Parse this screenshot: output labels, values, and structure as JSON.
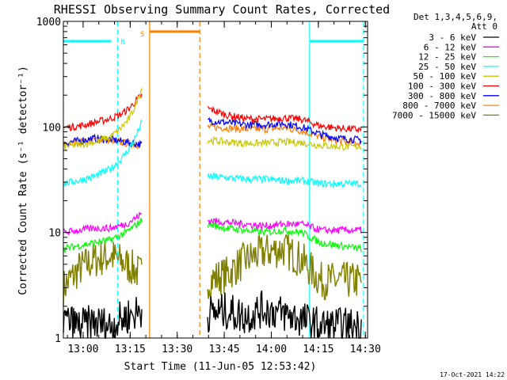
{
  "chart_data": {
    "type": "line",
    "title": "RHESSI Observing Summary Count Rates, Corrected",
    "xlabel": "Start Time (11-Jun-05 12:53:42)",
    "ylabel": "Corrected Count Rate (s⁻¹ detector⁻¹)",
    "yscale": "log",
    "ylim": [
      1,
      1000
    ],
    "xlim_minutes_after_start": [
      0,
      97
    ],
    "x_ticks": [
      {
        "label": "13:00",
        "minute": 6.3
      },
      {
        "label": "13:15",
        "minute": 21.3
      },
      {
        "label": "13:30",
        "minute": 36.3
      },
      {
        "label": "13:45",
        "minute": 51.3
      },
      {
        "label": "14:00",
        "minute": 66.3
      },
      {
        "label": "14:15",
        "minute": 81.3
      },
      {
        "label": "14:30",
        "minute": 96.3
      }
    ],
    "y_ticks": [
      {
        "label": "1",
        "value": 1
      },
      {
        "label": "10",
        "value": 10
      },
      {
        "label": "100",
        "value": 100
      },
      {
        "label": "1000",
        "value": 1000
      }
    ],
    "legend_header": [
      "Det 1,3,4,5,6,9,",
      "Att 0"
    ],
    "legend_position": "right",
    "series": [
      {
        "name": "3 - 6 keV",
        "color": "#000000",
        "segments": [
          {
            "x": [
              0,
              5,
              10,
              15,
              20,
              25
            ],
            "y": [
              1.5,
              1.3,
              1.4,
              1.3,
              1.6,
              1.8
            ]
          },
          {
            "x": [
              46,
              52,
              58,
              64,
              70,
              76,
              82,
              88,
              95
            ],
            "y": [
              1.7,
              1.8,
              1.6,
              1.9,
              1.7,
              1.5,
              1.3,
              1.3,
              1.3
            ]
          }
        ]
      },
      {
        "name": "6 - 12 keV",
        "color": "#ff00ff",
        "segments": [
          {
            "x": [
              0,
              5,
              10,
              15,
              20,
              25
            ],
            "y": [
              10,
              10.5,
              11,
              11,
              12,
              15
            ]
          },
          {
            "x": [
              46,
              52,
              58,
              64,
              70,
              76,
              82,
              88,
              95
            ],
            "y": [
              13,
              12.5,
              12,
              11.5,
              12,
              12,
              10.5,
              10.5,
              10.5
            ]
          }
        ]
      },
      {
        "name": "12 - 25 keV",
        "color": "#00ff00",
        "segments": [
          {
            "x": [
              0,
              5,
              10,
              15,
              20,
              25
            ],
            "y": [
              7,
              7.5,
              8,
              8.5,
              10,
              13
            ]
          },
          {
            "x": [
              46,
              52,
              58,
              64,
              70,
              76,
              82,
              88,
              95
            ],
            "y": [
              12,
              11,
              10.5,
              10,
              10.5,
              10,
              8,
              7.5,
              7
            ]
          }
        ]
      },
      {
        "name": "25 - 50 keV",
        "color": "#00ffff",
        "segments": [
          {
            "x": [
              0,
              5,
              10,
              15,
              18,
              21,
              23,
              25
            ],
            "y": [
              29,
              31,
              34,
              40,
              48,
              62,
              80,
              110
            ]
          },
          {
            "x": [
              46,
              52,
              58,
              64,
              70,
              76,
              82,
              88,
              95
            ],
            "y": [
              34,
              33,
              32,
              32,
              31,
              31,
              29,
              29,
              29
            ]
          }
        ]
      },
      {
        "name": "50 - 100 keV",
        "color": "#c8c800",
        "segments": [
          {
            "x": [
              0,
              5,
              10,
              15,
              18,
              21,
              23,
              25
            ],
            "y": [
              65,
              68,
              72,
              80,
              95,
              120,
              160,
              230
            ]
          },
          {
            "x": [
              46,
              52,
              58,
              64,
              70,
              76,
              82,
              88,
              95
            ],
            "y": [
              75,
              72,
              70,
              70,
              72,
              71,
              67,
              65,
              65
            ]
          }
        ]
      },
      {
        "name": "100 - 300 keV",
        "color": "#ff0000",
        "segments": [
          {
            "x": [
              0,
              5,
              10,
              15,
              18,
              21,
              23,
              25
            ],
            "y": [
              98,
              102,
              110,
              120,
              130,
              150,
              175,
              200
            ]
          },
          {
            "x": [
              46,
              52,
              58,
              64,
              70,
              76,
              82,
              88,
              95
            ],
            "y": [
              150,
              130,
              120,
              118,
              122,
              118,
              102,
              97,
              94
            ]
          }
        ]
      },
      {
        "name": "300 - 800 keV",
        "color": "#0000ff",
        "segments": [
          {
            "x": [
              0,
              5,
              10,
              15,
              20,
              25
            ],
            "y": [
              70,
              74,
              78,
              76,
              72,
              68
            ]
          },
          {
            "x": [
              46,
              52,
              58,
              64,
              70,
              76,
              82,
              88,
              95
            ],
            "y": [
              115,
              110,
              105,
              105,
              108,
              100,
              85,
              78,
              75
            ]
          }
        ]
      },
      {
        "name": "800 - 7000 keV",
        "color": "#ff8000",
        "segments": [
          {
            "x": [
              0,
              5,
              10,
              15,
              20,
              25
            ],
            "y": [
              68,
              72,
              76,
              74,
              70,
              67
            ]
          },
          {
            "x": [
              46,
              52,
              58,
              64,
              70,
              76,
              82,
              88,
              95
            ],
            "y": [
              100,
              98,
              95,
              95,
              98,
              92,
              80,
              73,
              70
            ]
          }
        ]
      },
      {
        "name": "7000 - 15000 keV",
        "color": "#808000",
        "segments": [
          {
            "x": [
              0,
              5,
              10,
              15,
              20,
              25
            ],
            "y": [
              3,
              4.5,
              5.5,
              6,
              5,
              4
            ]
          },
          {
            "x": [
              46,
              52,
              58,
              64,
              70,
              76,
              82,
              88,
              95
            ],
            "y": [
              3.5,
              4,
              5.5,
              6.5,
              7,
              5.5,
              3.5,
              3.5,
              3.5
            ]
          }
        ]
      }
    ],
    "annotations": {
      "night_label": "N",
      "saa_label": "S",
      "night_color": "#00ffff",
      "saa_color": "#ff8000",
      "night_bars": [
        {
          "x_start": 0,
          "x_end": 17.3,
          "level": 650
        },
        {
          "x_start": 78.5,
          "x_end": 95.7,
          "level": 650
        }
      ],
      "saa_bar": {
        "x_start": 27.5,
        "x_end": 43.5,
        "level": 800
      },
      "night_lines_solid": [
        0,
        78.5
      ],
      "night_lines_dashed": [
        17.3,
        95.7
      ],
      "saa_line_solid": 27.5,
      "saa_line_dashed": 43.5
    }
  },
  "footer": {
    "timestamp": "17-Oct-2021 14:22"
  }
}
